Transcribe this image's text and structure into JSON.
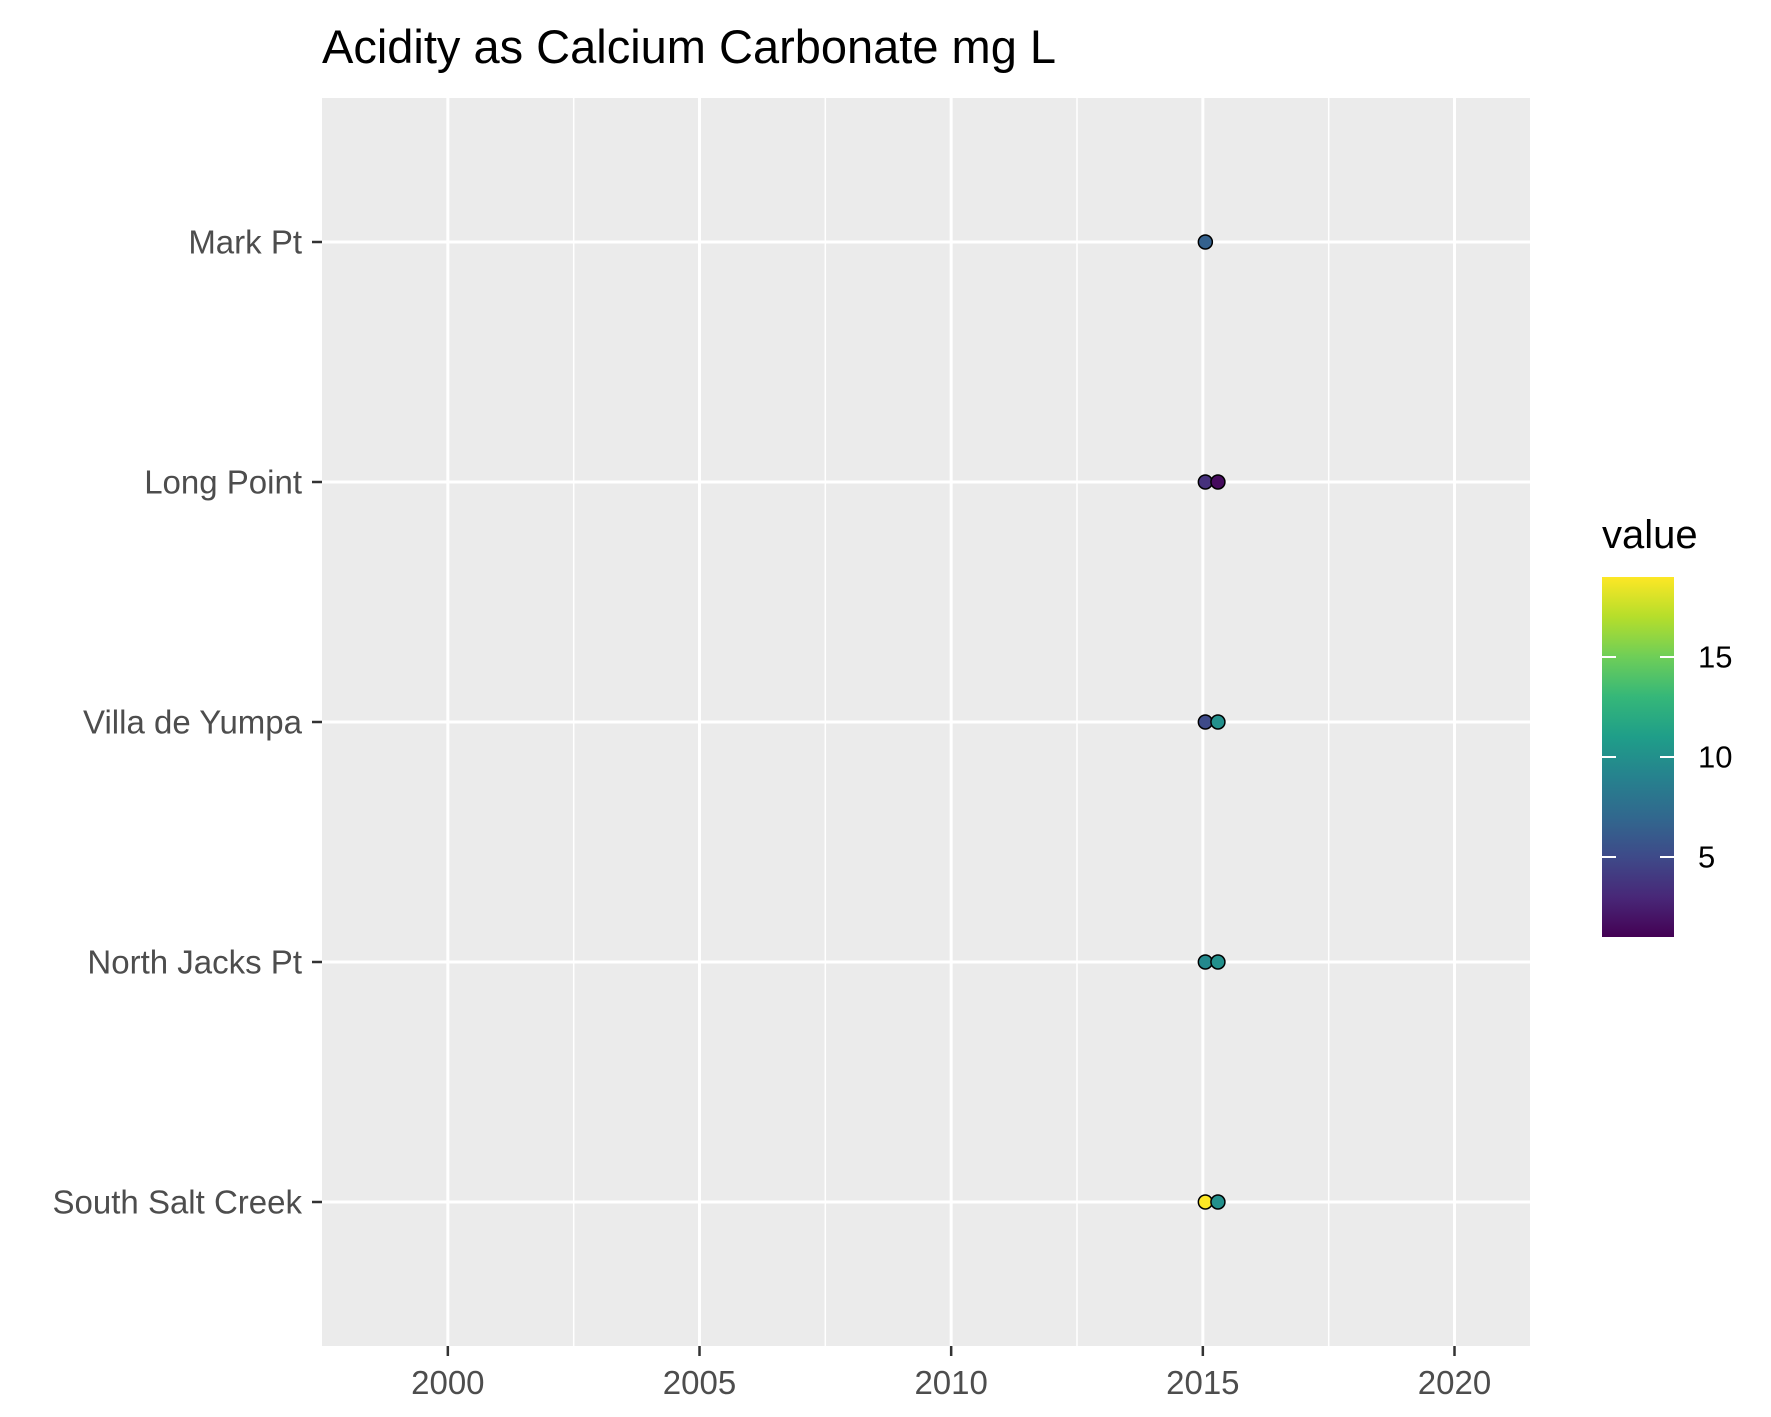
{
  "chart_data": {
    "type": "scatter",
    "title": "Acidity as Calcium Carbonate mg L",
    "xlabel": "",
    "ylabel": "",
    "xlim": [
      1997.5,
      2021.5
    ],
    "x_ticks": [
      2000,
      2005,
      2010,
      2015,
      2020
    ],
    "x_tick_labels": [
      "2000",
      "2005",
      "2010",
      "2015",
      "2020"
    ],
    "categories": [
      "Mark Pt",
      "Long Point",
      "Villa de Yumpa",
      "North Jacks Pt",
      "South Salt Creek"
    ],
    "grid": true,
    "points": [
      {
        "site": "Mark Pt",
        "x": 2015.05,
        "value": 6.5
      },
      {
        "site": "Long Point",
        "x": 2015.05,
        "value": 3.5
      },
      {
        "site": "Long Point",
        "x": 2015.3,
        "value": 1.5
      },
      {
        "site": "Villa de Yumpa",
        "x": 2015.05,
        "value": 5.0
      },
      {
        "site": "Villa de Yumpa",
        "x": 2015.3,
        "value": 10.0
      },
      {
        "site": "North Jacks Pt",
        "x": 2015.05,
        "value": 9.5
      },
      {
        "site": "North Jacks Pt",
        "x": 2015.3,
        "value": 10.0
      },
      {
        "site": "South Salt Creek",
        "x": 2015.05,
        "value": 19.0
      },
      {
        "site": "South Salt Creek",
        "x": 2015.3,
        "value": 10.0
      }
    ],
    "legend": {
      "title": "value",
      "placement": "right",
      "range": [
        1,
        19
      ],
      "ticks": [
        5,
        10,
        15
      ],
      "tick_labels": [
        "5",
        "10",
        "15"
      ],
      "palette": "viridis"
    }
  }
}
